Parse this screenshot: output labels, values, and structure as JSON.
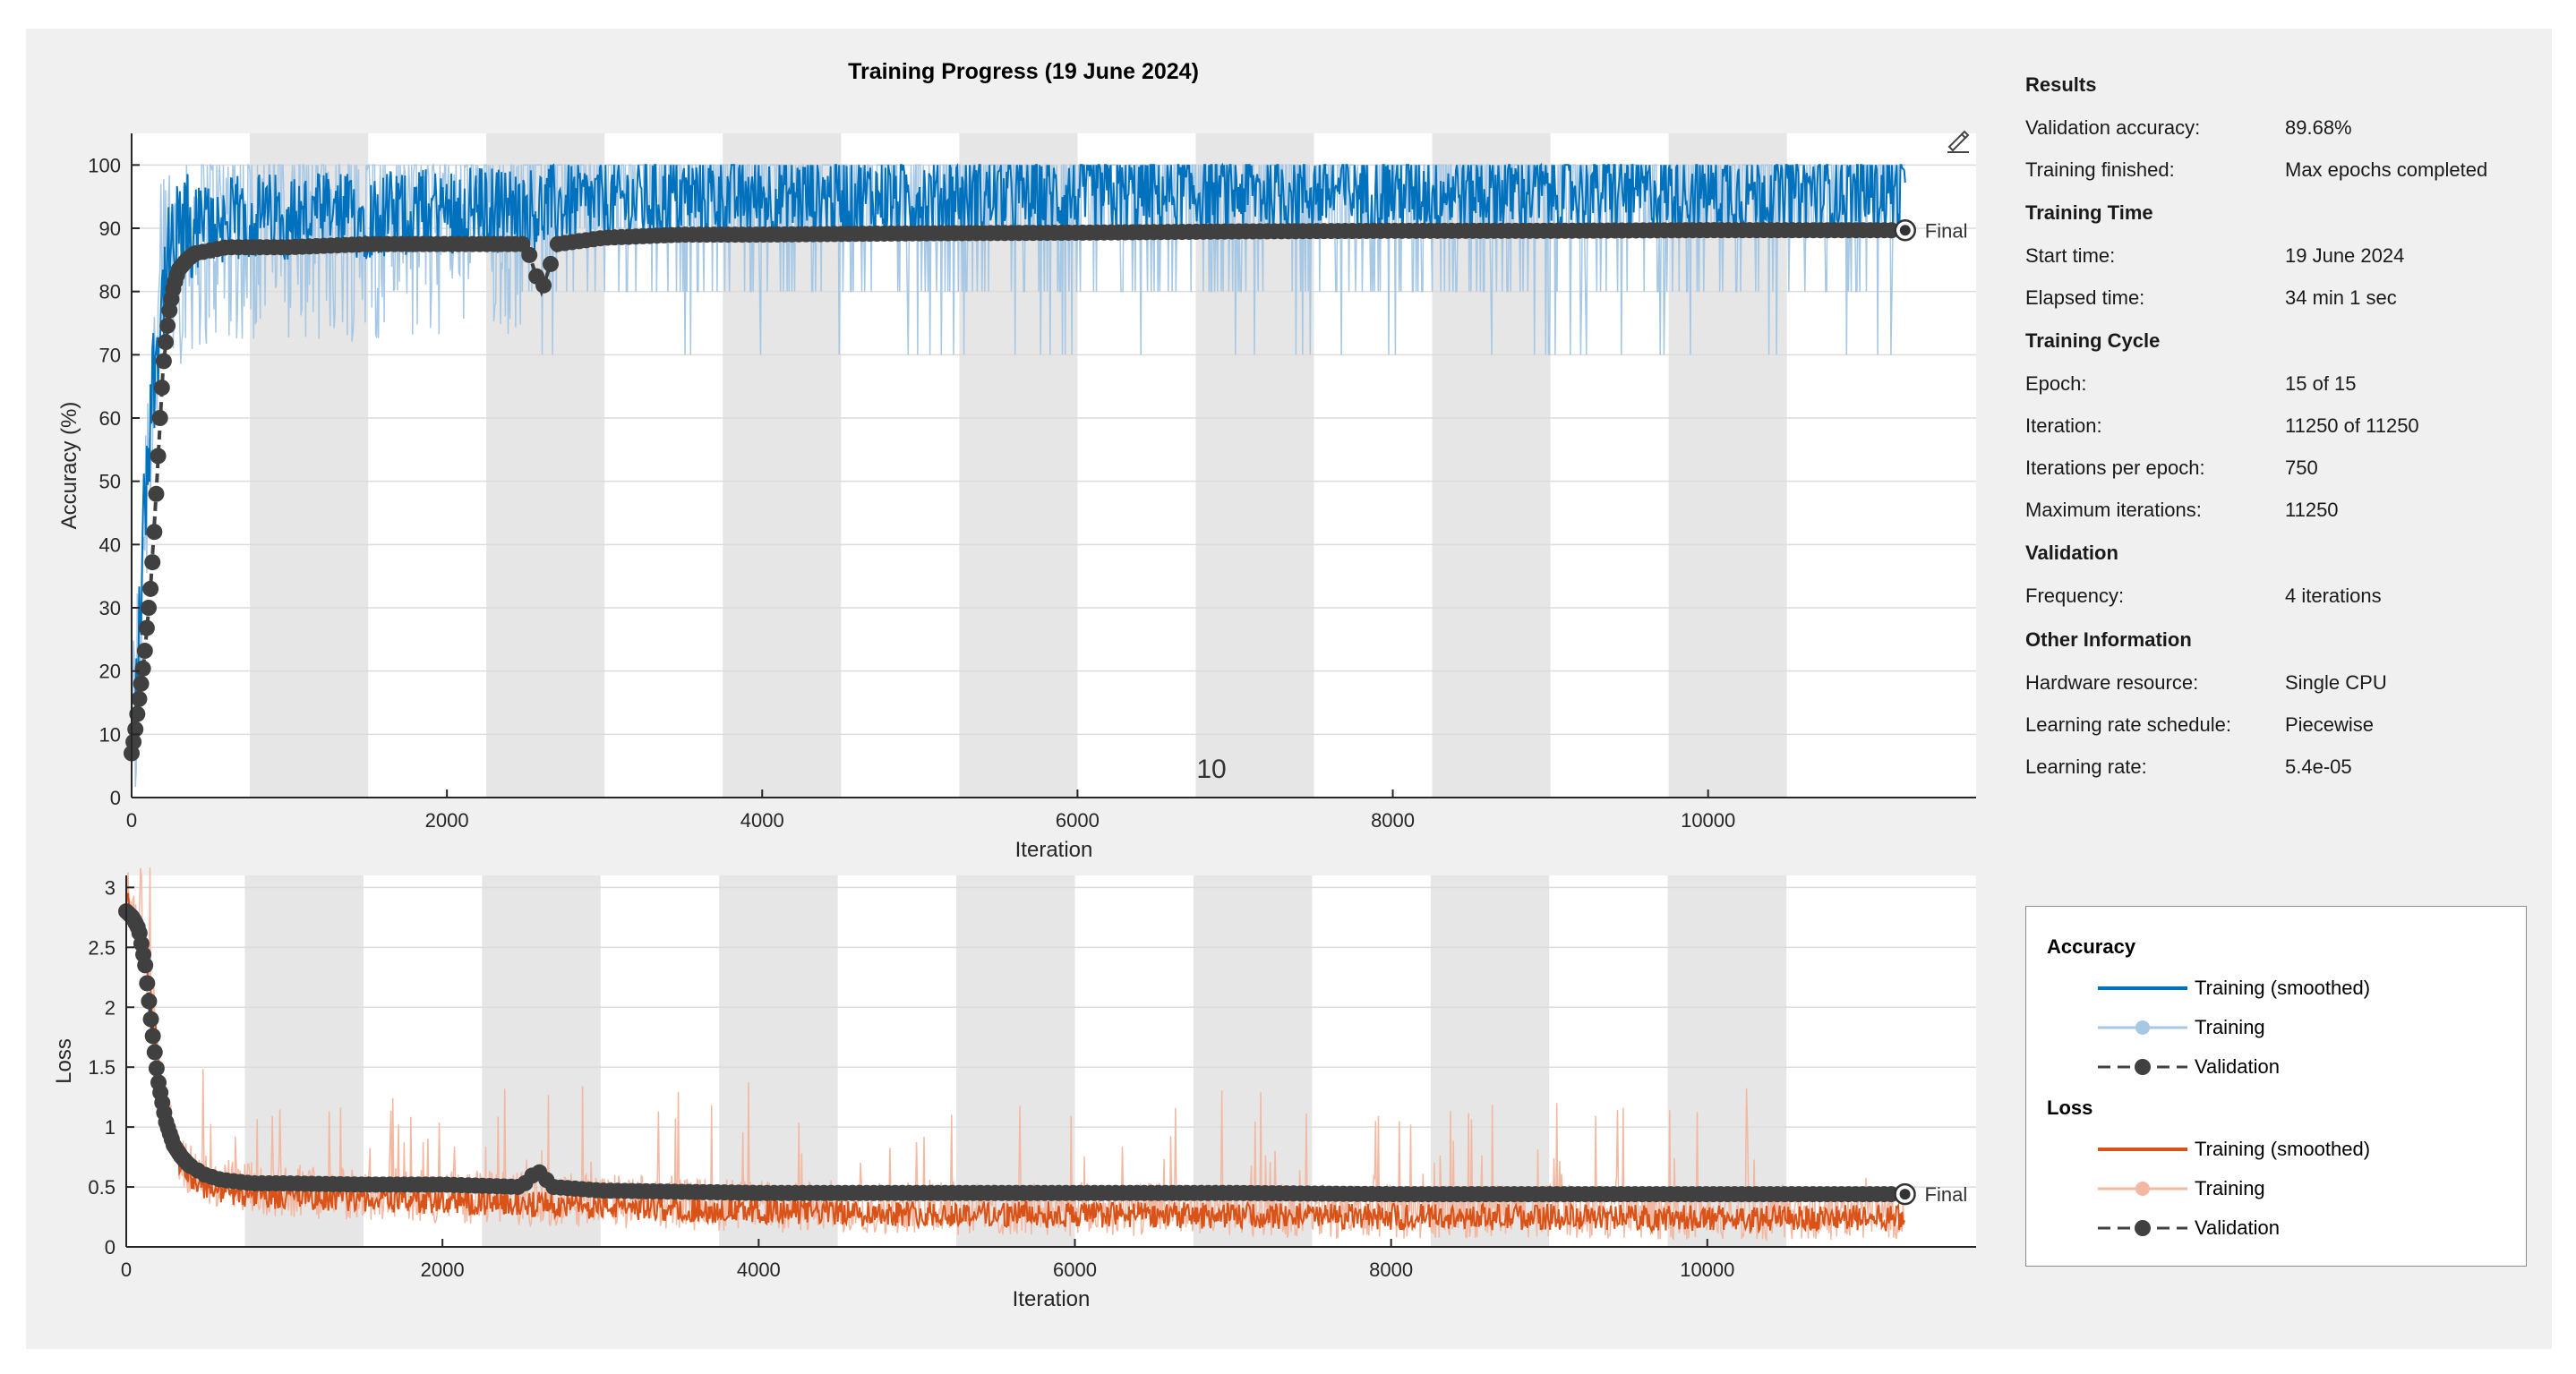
{
  "chart_data": [
    {
      "type": "line",
      "title": "Training Progress (19 June 2024)",
      "xlabel": "Iteration",
      "ylabel": "Accuracy (%)",
      "xlim": [
        0,
        11700
      ],
      "ylim": [
        0,
        105
      ],
      "xticks": [
        0,
        2000,
        4000,
        6000,
        8000,
        10000
      ],
      "yticks": [
        0,
        10,
        20,
        30,
        40,
        50,
        60,
        70,
        80,
        90,
        100
      ],
      "epoch_length": 750,
      "epoch_marker_label": "10",
      "final_label": "Final",
      "series": [
        {
          "name": "Training (smoothed)",
          "x": [
            0,
            40,
            80,
            120,
            160,
            200,
            250,
            300,
            350,
            400,
            500,
            600,
            800,
            1000,
            1500,
            2000,
            2500,
            3000,
            3500,
            4000,
            5000,
            6000,
            7000,
            8000,
            9000,
            10000,
            11250
          ],
          "y": [
            5,
            20,
            45,
            62,
            72,
            80,
            85,
            88,
            89,
            90,
            91,
            91,
            92,
            92,
            92,
            93,
            93,
            94,
            95,
            95,
            95,
            95,
            96,
            96,
            96,
            96,
            96
          ]
        },
        {
          "name": "Validation",
          "x": [
            0,
            20,
            40,
            60,
            80,
            100,
            120,
            140,
            160,
            180,
            200,
            220,
            240,
            260,
            280,
            300,
            350,
            400,
            500,
            600,
            800,
            1000,
            1500,
            2000,
            2500,
            2600,
            2700,
            3000,
            3500,
            4000,
            5000,
            6000,
            7000,
            8000,
            9000,
            10000,
            11250
          ],
          "y": [
            7,
            10,
            14,
            18,
            22,
            28,
            33,
            40,
            50,
            60,
            68,
            73,
            77,
            80,
            82,
            83.5,
            85,
            86,
            86.5,
            87,
            87,
            87,
            87.5,
            87.5,
            87.5,
            80,
            87.5,
            88.5,
            89,
            89,
            89.2,
            89.3,
            89.5,
            89.6,
            89.6,
            89.7,
            89.68
          ]
        }
      ]
    },
    {
      "type": "line",
      "xlabel": "Iteration",
      "ylabel": "Loss",
      "xlim": [
        0,
        11700
      ],
      "ylim": [
        0,
        3.1
      ],
      "xticks": [
        0,
        2000,
        4000,
        6000,
        8000,
        10000
      ],
      "yticks": [
        0,
        0.5,
        1,
        1.5,
        2,
        2.5,
        3
      ],
      "epoch_length": 750,
      "final_label": "Final",
      "series": [
        {
          "name": "Training (smoothed)",
          "x": [
            0,
            40,
            80,
            120,
            160,
            200,
            250,
            300,
            400,
            500,
            700,
            1000,
            1500,
            2000,
            2500,
            3000,
            4000,
            5000,
            6000,
            7000,
            8000,
            9000,
            10000,
            11250
          ],
          "y": [
            2.9,
            2.75,
            2.6,
            2.4,
            2.0,
            1.6,
            1.1,
            0.8,
            0.6,
            0.5,
            0.45,
            0.42,
            0.4,
            0.38,
            0.36,
            0.34,
            0.3,
            0.28,
            0.27,
            0.26,
            0.25,
            0.25,
            0.24,
            0.24
          ]
        },
        {
          "name": "Validation",
          "x": [
            0,
            40,
            80,
            120,
            160,
            200,
            250,
            300,
            350,
            400,
            500,
            600,
            800,
            1000,
            1500,
            2000,
            2500,
            2600,
            2700,
            3000,
            3500,
            4000,
            5000,
            6000,
            7000,
            8000,
            9000,
            10000,
            11250
          ],
          "y": [
            2.8,
            2.75,
            2.65,
            2.35,
            1.85,
            1.4,
            1.05,
            0.85,
            0.75,
            0.68,
            0.6,
            0.56,
            0.53,
            0.53,
            0.52,
            0.52,
            0.5,
            0.64,
            0.5,
            0.47,
            0.46,
            0.45,
            0.45,
            0.45,
            0.45,
            0.44,
            0.44,
            0.44,
            0.44
          ]
        }
      ]
    }
  ],
  "colors": {
    "accuracy_smoothed": "#0072bd",
    "accuracy_raw": "#a6c8e4",
    "loss_smoothed": "#d95319",
    "loss_raw": "#f2b8a1",
    "validation": "#404040",
    "epoch_band": "#e6e6e6",
    "panel_bg": "#f0f0f0"
  },
  "toolbar": {
    "icon": "brush-icon"
  },
  "info": {
    "results": {
      "heading": "Results",
      "validation_accuracy_label": "Validation accuracy:",
      "validation_accuracy": "89.68%",
      "training_finished_label": "Training finished:",
      "training_finished": "Max epochs completed"
    },
    "training_time": {
      "heading": "Training Time",
      "start_time_label": "Start time:",
      "start_time": "19 June 2024",
      "elapsed_label": "Elapsed time:",
      "elapsed": "34 min 1 sec"
    },
    "training_cycle": {
      "heading": "Training Cycle",
      "epoch_label": "Epoch:",
      "epoch": "15 of 15",
      "iteration_label": "Iteration:",
      "iteration": "11250 of 11250",
      "ipe_label": "Iterations per epoch:",
      "ipe": "750",
      "max_iter_label": "Maximum iterations:",
      "max_iter": "11250"
    },
    "validation": {
      "heading": "Validation",
      "frequency_label": "Frequency:",
      "frequency": "4 iterations"
    },
    "other": {
      "heading": "Other Information",
      "hardware_label": "Hardware resource:",
      "hardware": "Single CPU",
      "schedule_label": "Learning rate schedule:",
      "schedule": "Piecewise",
      "lr_label": "Learning rate:",
      "lr": "5.4e-05"
    }
  },
  "legend": {
    "accuracy_heading": "Accuracy",
    "loss_heading": "Loss",
    "smoothed": "Training (smoothed)",
    "training": "Training",
    "validation": "Validation"
  }
}
